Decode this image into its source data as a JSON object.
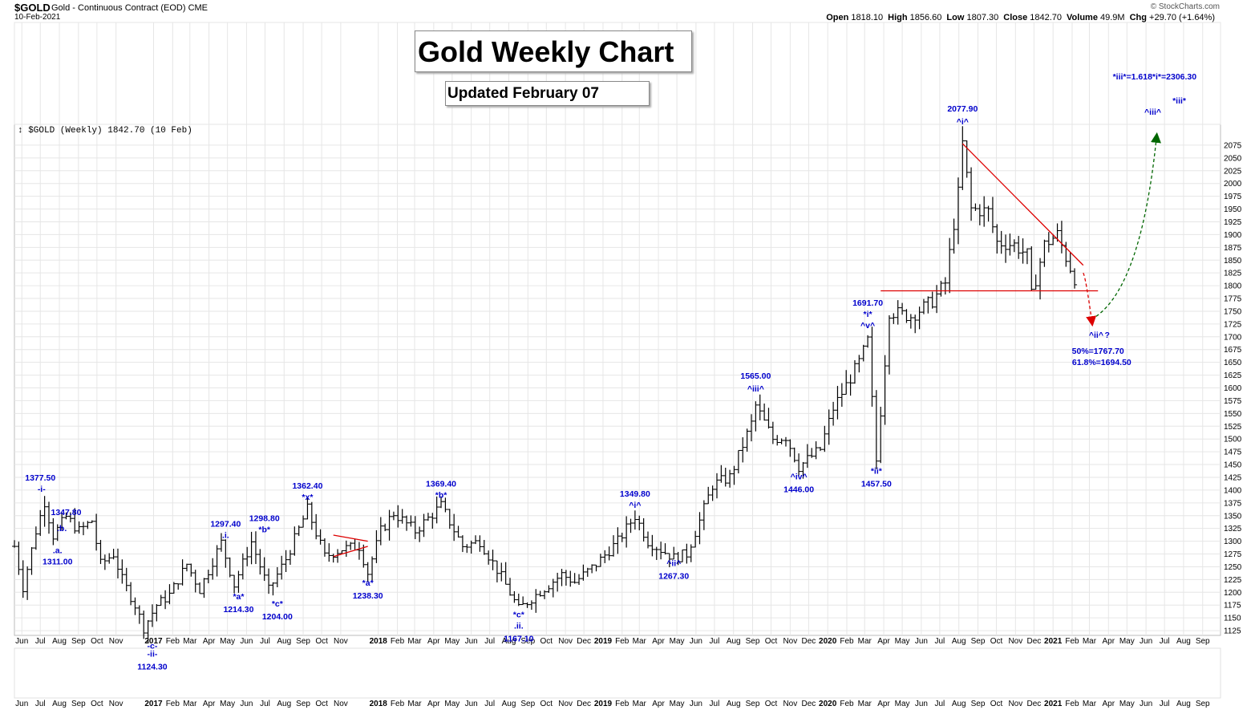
{
  "header": {
    "symbol": "$GOLD",
    "name": "Gold - Continuous Contract (EOD)",
    "exchange": "CME",
    "date": "10-Feb-2021",
    "brand": "© StockCharts.com",
    "stats": [
      {
        "label": "Open",
        "value": "1818.10"
      },
      {
        "label": "High",
        "value": "1856.60"
      },
      {
        "label": "Low",
        "value": "1807.30"
      },
      {
        "label": "Close",
        "value": "1842.70"
      },
      {
        "label": "Volume",
        "value": "49.9M"
      },
      {
        "label": "Chg",
        "value": "+29.70 (+1.64%)"
      }
    ]
  },
  "title": "Gold Weekly Chart",
  "subtitle": "Updated February 07",
  "colors": {
    "bar": "#000000",
    "wave_label": "#0000cc",
    "trendline": "#dd0000",
    "projection_up": "#006600",
    "projection_down": "#dd0000",
    "grid": "#e6e6e6"
  },
  "chart_data": {
    "type": "ohlc",
    "series_label": "$GOLD (Weekly) 1842.70 (10 Feb)",
    "ylim": [
      1100,
      2100
    ],
    "y_ticks": [
      1125,
      1150,
      1175,
      1200,
      1225,
      1250,
      1275,
      1300,
      1325,
      1350,
      1375,
      1400,
      1425,
      1450,
      1475,
      1500,
      1525,
      1550,
      1575,
      1600,
      1625,
      1650,
      1675,
      1700,
      1725,
      1750,
      1775,
      1800,
      1825,
      1850,
      1875,
      1900,
      1925,
      1950,
      1975,
      2000,
      2025,
      2050,
      2075
    ],
    "x_start": "2016-05-20",
    "x_end": "2021-09-30",
    "x_ticks": [
      {
        "date": "2016-06-01",
        "label": "Jun"
      },
      {
        "date": "2016-07-01",
        "label": "Jul"
      },
      {
        "date": "2016-08-01",
        "label": "Aug"
      },
      {
        "date": "2016-09-01",
        "label": "Sep"
      },
      {
        "date": "2016-10-01",
        "label": "Oct"
      },
      {
        "date": "2016-11-01",
        "label": "Nov"
      },
      {
        "date": "2017-01-01",
        "label": "2017"
      },
      {
        "date": "2017-02-01",
        "label": "Feb"
      },
      {
        "date": "2017-03-01",
        "label": "Mar"
      },
      {
        "date": "2017-04-01",
        "label": "Apr"
      },
      {
        "date": "2017-05-01",
        "label": "May"
      },
      {
        "date": "2017-06-01",
        "label": "Jun"
      },
      {
        "date": "2017-07-01",
        "label": "Jul"
      },
      {
        "date": "2017-08-01",
        "label": "Aug"
      },
      {
        "date": "2017-09-01",
        "label": "Sep"
      },
      {
        "date": "2017-10-01",
        "label": "Oct"
      },
      {
        "date": "2017-11-01",
        "label": "Nov"
      },
      {
        "date": "2018-01-01",
        "label": "2018"
      },
      {
        "date": "2018-02-01",
        "label": "Feb"
      },
      {
        "date": "2018-03-01",
        "label": "Mar"
      },
      {
        "date": "2018-04-01",
        "label": "Apr"
      },
      {
        "date": "2018-05-01",
        "label": "May"
      },
      {
        "date": "2018-06-01",
        "label": "Jun"
      },
      {
        "date": "2018-07-01",
        "label": "Jul"
      },
      {
        "date": "2018-08-01",
        "label": "Aug"
      },
      {
        "date": "2018-09-01",
        "label": "Sep"
      },
      {
        "date": "2018-10-01",
        "label": "Oct"
      },
      {
        "date": "2018-11-01",
        "label": "Nov"
      },
      {
        "date": "2018-12-01",
        "label": "Dec"
      },
      {
        "date": "2019-01-01",
        "label": "2019"
      },
      {
        "date": "2019-02-01",
        "label": "Feb"
      },
      {
        "date": "2019-03-01",
        "label": "Mar"
      },
      {
        "date": "2019-04-01",
        "label": "Apr"
      },
      {
        "date": "2019-05-01",
        "label": "May"
      },
      {
        "date": "2019-06-01",
        "label": "Jun"
      },
      {
        "date": "2019-07-01",
        "label": "Jul"
      },
      {
        "date": "2019-08-01",
        "label": "Aug"
      },
      {
        "date": "2019-09-01",
        "label": "Sep"
      },
      {
        "date": "2019-10-01",
        "label": "Oct"
      },
      {
        "date": "2019-11-01",
        "label": "Nov"
      },
      {
        "date": "2019-12-01",
        "label": "Dec"
      },
      {
        "date": "2020-01-01",
        "label": "2020"
      },
      {
        "date": "2020-02-01",
        "label": "Feb"
      },
      {
        "date": "2020-03-01",
        "label": "Mar"
      },
      {
        "date": "2020-04-01",
        "label": "Apr"
      },
      {
        "date": "2020-05-01",
        "label": "May"
      },
      {
        "date": "2020-06-01",
        "label": "Jun"
      },
      {
        "date": "2020-07-01",
        "label": "Jul"
      },
      {
        "date": "2020-08-01",
        "label": "Aug"
      },
      {
        "date": "2020-09-01",
        "label": "Sep"
      },
      {
        "date": "2020-10-01",
        "label": "Oct"
      },
      {
        "date": "2020-11-01",
        "label": "Nov"
      },
      {
        "date": "2020-12-01",
        "label": "Dec"
      },
      {
        "date": "2021-01-01",
        "label": "2021"
      },
      {
        "date": "2021-02-01",
        "label": "Feb"
      },
      {
        "date": "2021-03-01",
        "label": "Mar"
      },
      {
        "date": "2021-04-01",
        "label": "Apr"
      },
      {
        "date": "2021-05-01",
        "label": "May"
      },
      {
        "date": "2021-06-01",
        "label": "Jun"
      },
      {
        "date": "2021-07-01",
        "label": "Jul"
      },
      {
        "date": "2021-08-01",
        "label": "Aug"
      },
      {
        "date": "2021-09-01",
        "label": "Sep"
      }
    ],
    "anchors": [
      [
        "2016-05-20",
        1290
      ],
      [
        "2016-06-03",
        1210
      ],
      [
        "2016-06-24",
        1320
      ],
      [
        "2016-07-08",
        1377.5
      ],
      [
        "2016-07-22",
        1311
      ],
      [
        "2016-08-12",
        1347.8
      ],
      [
        "2016-09-02",
        1320
      ],
      [
        "2016-09-23",
        1340
      ],
      [
        "2016-10-07",
        1255
      ],
      [
        "2016-10-28",
        1275
      ],
      [
        "2016-11-11",
        1225
      ],
      [
        "2016-12-02",
        1175
      ],
      [
        "2016-12-16",
        1130
      ],
      [
        "2017-01-06",
        1175
      ],
      [
        "2017-01-27",
        1195
      ],
      [
        "2017-02-24",
        1255
      ],
      [
        "2017-03-17",
        1205
      ],
      [
        "2017-04-14",
        1280
      ],
      [
        "2017-04-21",
        1297.4
      ],
      [
        "2017-05-12",
        1214.3
      ],
      [
        "2017-06-09",
        1298.8
      ],
      [
        "2017-07-07",
        1204
      ],
      [
        "2017-08-04",
        1265
      ],
      [
        "2017-09-08",
        1362.4
      ],
      [
        "2017-10-06",
        1270
      ],
      [
        "2017-11-03",
        1285
      ],
      [
        "2017-12-01",
        1290
      ],
      [
        "2017-12-15",
        1238.3
      ],
      [
        "2018-01-05",
        1320
      ],
      [
        "2018-01-26",
        1355
      ],
      [
        "2018-03-02",
        1320
      ],
      [
        "2018-04-13",
        1369.4
      ],
      [
        "2018-05-18",
        1290
      ],
      [
        "2018-06-15",
        1300
      ],
      [
        "2018-07-20",
        1230
      ],
      [
        "2018-08-17",
        1167.1
      ],
      [
        "2018-09-14",
        1195
      ],
      [
        "2018-10-26",
        1235
      ],
      [
        "2018-11-16",
        1220
      ],
      [
        "2018-12-21",
        1255
      ],
      [
        "2019-01-25",
        1300
      ],
      [
        "2019-02-22",
        1349.8
      ],
      [
        "2019-03-15",
        1300
      ],
      [
        "2019-04-26",
        1267.3
      ],
      [
        "2019-05-17",
        1275
      ],
      [
        "2019-06-07",
        1340
      ],
      [
        "2019-06-28",
        1410
      ],
      [
        "2019-07-26",
        1425
      ],
      [
        "2019-08-30",
        1530
      ],
      [
        "2019-09-06",
        1565
      ],
      [
        "2019-10-04",
        1500
      ],
      [
        "2019-10-25",
        1505
      ],
      [
        "2019-11-15",
        1446
      ],
      [
        "2019-12-20",
        1480
      ],
      [
        "2020-01-10",
        1560
      ],
      [
        "2020-02-21",
        1650
      ],
      [
        "2020-03-06",
        1691.7
      ],
      [
        "2020-03-20",
        1457.5
      ],
      [
        "2020-04-10",
        1750
      ],
      [
        "2020-05-15",
        1740
      ],
      [
        "2020-06-19",
        1770
      ],
      [
        "2020-07-10",
        1805
      ],
      [
        "2020-07-31",
        1980
      ],
      [
        "2020-08-07",
        2077.9
      ],
      [
        "2020-08-21",
        1950
      ],
      [
        "2020-09-18",
        1945
      ],
      [
        "2020-10-02",
        1885
      ],
      [
        "2020-10-30",
        1880
      ],
      [
        "2020-11-20",
        1860
      ],
      [
        "2020-11-27",
        1780
      ],
      [
        "2020-12-18",
        1880
      ],
      [
        "2021-01-08",
        1900
      ],
      [
        "2021-01-22",
        1855
      ],
      [
        "2021-02-05",
        1815
      ],
      [
        "2021-02-10",
        1842.7
      ]
    ],
    "series": [
      {
        "name": "$GOLD (Weekly)",
        "values_note": "",
        "ohlc_source": "anchors"
      }
    ],
    "trendlines": [
      {
        "id": "upper-resistance",
        "from": [
          "2020-08-07",
          2077.9
        ],
        "to": [
          "2021-02-19",
          1840
        ]
      },
      {
        "id": "horizontal-support",
        "from": [
          "2020-03-27",
          1790
        ],
        "to": [
          "2021-03-15",
          1790
        ]
      }
    ],
    "triangle_2017": [
      {
        "from": [
          "2017-10-20",
          1312
        ],
        "to": [
          "2017-12-15",
          1300
        ]
      },
      {
        "from": [
          "2017-10-20",
          1270
        ],
        "to": [
          "2017-12-15",
          1290
        ]
      }
    ],
    "projections": [
      {
        "id": "drop-projection",
        "from": [
          "2021-02-19",
          1825
        ],
        "to": [
          "2021-03-05",
          1730
        ],
        "color": "down"
      },
      {
        "id": "rally-projection",
        "from": [
          "2021-03-12",
          1740
        ],
        "to": [
          "2021-06-18",
          2090
        ],
        "color": "up"
      }
    ],
    "annotations": [
      {
        "text": "1377.50",
        "date": "2016-07-01",
        "price": 1377.5,
        "dy": -26
      },
      {
        "text": "-i-",
        "date": "2016-07-03",
        "price": 1377.5,
        "dy": -12
      },
      {
        "text": "1347.80",
        "date": "2016-08-12",
        "price": 1347.8,
        "dy": -2
      },
      {
        "text": ".b.",
        "date": "2016-08-05",
        "price": 1347.8,
        "dy": 18
      },
      {
        "text": ".a.",
        "date": "2016-07-29",
        "price": 1311,
        "dy": 22
      },
      {
        "text": "1311.00",
        "date": "2016-07-29",
        "price": 1311,
        "dy": 36
      },
      {
        "text": "-c-",
        "date": "2016-12-30",
        "price": 1124.3,
        "dy": 22
      },
      {
        "text": "-ii-",
        "date": "2016-12-30",
        "price": 1124.3,
        "dy": 32
      },
      {
        "text": "1124.30",
        "date": "2016-12-30",
        "price": 1124.3,
        "dy": 48
      },
      {
        "text": "1297.40",
        "date": "2017-04-28",
        "price": 1297.4,
        "dy": -20
      },
      {
        "text": ".i.",
        "date": "2017-04-28",
        "price": 1297.4,
        "dy": -6
      },
      {
        "text": "*a*",
        "date": "2017-05-19",
        "price": 1214.3,
        "dy": 18
      },
      {
        "text": "1214.30",
        "date": "2017-05-19",
        "price": 1214.3,
        "dy": 34
      },
      {
        "text": "1298.80",
        "date": "2017-06-30",
        "price": 1298.8,
        "dy": -26
      },
      {
        "text": "*b*",
        "date": "2017-06-30",
        "price": 1298.8,
        "dy": -12
      },
      {
        "text": "*c*",
        "date": "2017-07-21",
        "price": 1204,
        "dy": 20
      },
      {
        "text": "1204.00",
        "date": "2017-07-21",
        "price": 1204,
        "dy": 36
      },
      {
        "text": "1362.40",
        "date": "2017-09-08",
        "price": 1362.4,
        "dy": -26
      },
      {
        "text": "*x*",
        "date": "2017-09-08",
        "price": 1362.4,
        "dy": -12
      },
      {
        "text": "*a*",
        "date": "2017-12-15",
        "price": 1238.3,
        "dy": 16
      },
      {
        "text": "1238.30",
        "date": "2017-12-15",
        "price": 1238.3,
        "dy": 32
      },
      {
        "text": "1369.40",
        "date": "2018-04-13",
        "price": 1369.4,
        "dy": -24
      },
      {
        "text": "*b*",
        "date": "2018-04-13",
        "price": 1369.4,
        "dy": -10
      },
      {
        "text": "*c*",
        "date": "2018-08-17",
        "price": 1167.1,
        "dy": 10
      },
      {
        "text": ".ii.",
        "date": "2018-08-17",
        "price": 1167.1,
        "dy": 24
      },
      {
        "text": "1167.10",
        "date": "2018-08-17",
        "price": 1167.1,
        "dy": 40
      },
      {
        "text": "1349.80",
        "date": "2019-02-22",
        "price": 1349.8,
        "dy": -24
      },
      {
        "text": "^i^",
        "date": "2019-02-22",
        "price": 1349.8,
        "dy": -10
      },
      {
        "text": "^ii^",
        "date": "2019-04-26",
        "price": 1267.3,
        "dy": 10
      },
      {
        "text": "1267.30",
        "date": "2019-04-26",
        "price": 1267.3,
        "dy": 26
      },
      {
        "text": "1565.00",
        "date": "2019-09-06",
        "price": 1565,
        "dy": -34
      },
      {
        "text": "^iii^",
        "date": "2019-09-06",
        "price": 1565,
        "dy": -18
      },
      {
        "text": "^iv^",
        "date": "2019-11-15",
        "price": 1446,
        "dy": 16
      },
      {
        "text": "1446.00",
        "date": "2019-11-15",
        "price": 1446,
        "dy": 32
      },
      {
        "text": "1691.70",
        "date": "2020-03-06",
        "price": 1691.7,
        "dy": -44
      },
      {
        "text": "*i*",
        "date": "2020-03-06",
        "price": 1691.7,
        "dy": -30
      },
      {
        "text": "^v^",
        "date": "2020-03-06",
        "price": 1691.7,
        "dy": -16
      },
      {
        "text": "*ii*",
        "date": "2020-03-20",
        "price": 1457.5,
        "dy": 16
      },
      {
        "text": "1457.50",
        "date": "2020-03-20",
        "price": 1457.5,
        "dy": 32
      },
      {
        "text": "2077.90",
        "date": "2020-08-07",
        "price": 2077.9,
        "dy": -40
      },
      {
        "text": "^i^",
        "date": "2020-08-07",
        "price": 2077.9,
        "dy": -24
      },
      {
        "text": "^ii^",
        "date": "2021-03-12",
        "price": 1720,
        "dy": 14
      },
      {
        "text": "?",
        "date": "2021-03-30",
        "price": 1720,
        "dy": 14
      },
      {
        "text": "50%=1767.70",
        "date": "2021-03-15",
        "price": 1720,
        "dy": 34
      },
      {
        "text": "61.8%=1694.50",
        "date": "2021-03-21",
        "price": 1720,
        "dy": 48
      },
      {
        "text": "^iii^",
        "date": "2021-06-12",
        "price": 2100,
        "dy": -22
      },
      {
        "text": "*iii*",
        "date": "2021-07-25",
        "price": 2100,
        "dy": -36
      },
      {
        "text": "*iii*=1.618*i*=2306.30",
        "date": "2021-06-15",
        "price": 2100,
        "dy": -66
      }
    ]
  }
}
